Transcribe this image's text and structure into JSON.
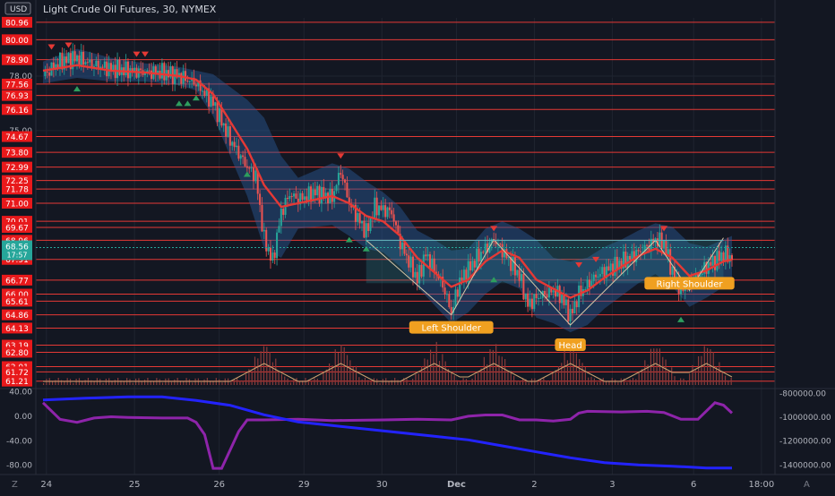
{
  "header": {
    "currency": "USD",
    "symbol_title": "Light Crude Oil Futures, 30, NYMEX"
  },
  "colors": {
    "background": "#131722",
    "hline": "#e53935",
    "level_bg": "#e8191b",
    "current_price_bg": "#26a69a",
    "bull": "#26a69a",
    "bear": "#ef5350",
    "ma": "#e53935",
    "band": "#2a5a9a",
    "pattern_label_bg": "#f0a020",
    "osc_purple": "#8e24aa",
    "osc_blue": "#2323ff",
    "volume": "#8a3a3a",
    "volume_avg": "#c8a070"
  },
  "chart_data": [
    {
      "type": "candlestick",
      "title": "Light Crude Oil Futures, 30, NYMEX",
      "x_ticks": [
        "24",
        "25",
        "26",
        "29",
        "30",
        "Dec",
        "2",
        "3",
        "6",
        "18:00"
      ],
      "y_axis_labels": [
        "80.00",
        "78.00",
        "75.00"
      ],
      "ylim": [
        60.9,
        81.2
      ],
      "grid": true,
      "horizontal_levels": [
        80.96,
        80.0,
        78.9,
        77.56,
        76.93,
        76.16,
        74.67,
        73.8,
        72.99,
        72.25,
        71.78,
        71.0,
        70.01,
        69.67,
        68.96,
        67.91,
        66.77,
        66.0,
        65.61,
        64.86,
        64.13,
        63.19,
        62.8,
        62.01,
        61.72,
        61.21
      ],
      "level_labels": [
        "80.96",
        "80.00",
        "78.90",
        "77.56",
        "76.93",
        "76.16",
        "74.67",
        "73.80",
        "72.99",
        "72.25",
        "71.78",
        "71.00",
        "70.01",
        "69.67",
        "68.96",
        "67.91",
        "66.77",
        "66.00",
        "65.61",
        "64.86",
        "64.13",
        "63.19",
        "62.80",
        "62.01",
        "61.72",
        "61.21"
      ],
      "current_price": {
        "label": "68.56",
        "countdown": "17:57",
        "value": 68.56
      },
      "price_path": [
        [
          0,
          78.0
        ],
        [
          2,
          78.8
        ],
        [
          4,
          79.0
        ],
        [
          6,
          78.6
        ],
        [
          8,
          78.4
        ],
        [
          10,
          78.3
        ],
        [
          12,
          78.2
        ],
        [
          14,
          78.2
        ],
        [
          16,
          78.0
        ],
        [
          18,
          77.6
        ],
        [
          20,
          76.5
        ],
        [
          22,
          74.5
        ],
        [
          24,
          73.0
        ],
        [
          25,
          72.5
        ],
        [
          26,
          69.0
        ],
        [
          27,
          67.8
        ],
        [
          28,
          70.5
        ],
        [
          29,
          71.5
        ],
        [
          30,
          71.2
        ],
        [
          32,
          71.6
        ],
        [
          34,
          71.3
        ],
        [
          35,
          72.8
        ],
        [
          36,
          71.0
        ],
        [
          37,
          70.2
        ],
        [
          38,
          69.4
        ],
        [
          39,
          70.8
        ],
        [
          41,
          70.5
        ],
        [
          42,
          68.8
        ],
        [
          44,
          66.8
        ],
        [
          45,
          68.2
        ],
        [
          47,
          66.5
        ],
        [
          48,
          65.0
        ],
        [
          49,
          66.7
        ],
        [
          51,
          68.0
        ],
        [
          53,
          69.0
        ],
        [
          54,
          68.4
        ],
        [
          56,
          67.0
        ],
        [
          57,
          65.4
        ],
        [
          58,
          65.8
        ],
        [
          60,
          66.2
        ],
        [
          61,
          65.8
        ],
        [
          62,
          64.8
        ],
        [
          63,
          66.0
        ],
        [
          65,
          67.0
        ],
        [
          67,
          67.5
        ],
        [
          69,
          68.0
        ],
        [
          71,
          68.6
        ],
        [
          72,
          69.0
        ],
        [
          73,
          68.8
        ],
        [
          74,
          67.2
        ],
        [
          75,
          66.2
        ],
        [
          76,
          66.6
        ],
        [
          77,
          67.0
        ],
        [
          78,
          67.5
        ],
        [
          80,
          68.2
        ],
        [
          81,
          68.0
        ]
      ],
      "ma_path": [
        [
          0,
          78.3
        ],
        [
          4,
          78.6
        ],
        [
          8,
          78.3
        ],
        [
          12,
          78.2
        ],
        [
          16,
          78.0
        ],
        [
          18,
          77.8
        ],
        [
          20,
          77.0
        ],
        [
          22,
          75.5
        ],
        [
          24,
          74.0
        ],
        [
          26,
          72.0
        ],
        [
          28,
          70.8
        ],
        [
          30,
          71.0
        ],
        [
          34,
          71.4
        ],
        [
          36,
          71.0
        ],
        [
          38,
          70.3
        ],
        [
          40,
          70.0
        ],
        [
          42,
          69.2
        ],
        [
          44,
          68.0
        ],
        [
          46,
          67.2
        ],
        [
          48,
          66.4
        ],
        [
          50,
          66.8
        ],
        [
          52,
          67.8
        ],
        [
          54,
          68.4
        ],
        [
          56,
          68.0
        ],
        [
          58,
          66.8
        ],
        [
          60,
          66.3
        ],
        [
          62,
          65.8
        ],
        [
          64,
          66.2
        ],
        [
          66,
          66.9
        ],
        [
          68,
          67.5
        ],
        [
          70,
          68.1
        ],
        [
          72,
          68.5
        ],
        [
          74,
          68.0
        ],
        [
          76,
          67.0
        ],
        [
          78,
          67.3
        ],
        [
          80,
          67.8
        ],
        [
          81,
          67.9
        ]
      ],
      "band_upper": [
        [
          0,
          78.8
        ],
        [
          4,
          79.5
        ],
        [
          8,
          79.0
        ],
        [
          12,
          78.7
        ],
        [
          16,
          78.5
        ],
        [
          18,
          78.3
        ],
        [
          20,
          78.1
        ],
        [
          22,
          77.4
        ],
        [
          24,
          76.7
        ],
        [
          26,
          75.7
        ],
        [
          28,
          73.6
        ],
        [
          30,
          72.4
        ],
        [
          34,
          73.2
        ],
        [
          36,
          72.9
        ],
        [
          38,
          72.2
        ],
        [
          40,
          71.6
        ],
        [
          42,
          70.8
        ],
        [
          44,
          69.5
        ],
        [
          46,
          69.0
        ],
        [
          48,
          68.4
        ],
        [
          50,
          68.5
        ],
        [
          52,
          69.6
        ],
        [
          54,
          70.0
        ],
        [
          56,
          69.6
        ],
        [
          58,
          69.0
        ],
        [
          60,
          68.0
        ],
        [
          62,
          67.8
        ],
        [
          64,
          68.0
        ],
        [
          66,
          68.6
        ],
        [
          68,
          69.0
        ],
        [
          70,
          69.5
        ],
        [
          72,
          69.9
        ],
        [
          74,
          69.7
        ],
        [
          76,
          68.8
        ],
        [
          78,
          68.6
        ],
        [
          80,
          69.0
        ],
        [
          81,
          69.2
        ]
      ],
      "band_lower": [
        [
          0,
          77.6
        ],
        [
          4,
          77.9
        ],
        [
          8,
          77.7
        ],
        [
          12,
          77.7
        ],
        [
          16,
          77.5
        ],
        [
          18,
          77.2
        ],
        [
          20,
          75.8
        ],
        [
          22,
          73.6
        ],
        [
          24,
          71.4
        ],
        [
          26,
          68.5
        ],
        [
          28,
          68.0
        ],
        [
          30,
          69.6
        ],
        [
          34,
          69.8
        ],
        [
          36,
          69.2
        ],
        [
          38,
          68.5
        ],
        [
          40,
          68.3
        ],
        [
          42,
          67.5
        ],
        [
          44,
          66.4
        ],
        [
          46,
          65.4
        ],
        [
          48,
          64.4
        ],
        [
          50,
          65.0
        ],
        [
          52,
          66.0
        ],
        [
          54,
          66.7
        ],
        [
          56,
          66.3
        ],
        [
          58,
          64.7
        ],
        [
          60,
          64.4
        ],
        [
          62,
          63.9
        ],
        [
          64,
          64.3
        ],
        [
          66,
          65.2
        ],
        [
          68,
          65.9
        ],
        [
          70,
          66.6
        ],
        [
          72,
          67.1
        ],
        [
          74,
          66.4
        ],
        [
          76,
          65.3
        ],
        [
          78,
          65.8
        ],
        [
          80,
          66.4
        ],
        [
          81,
          66.6
        ]
      ],
      "pattern": {
        "neckline": 68.96,
        "labels": [
          "Left Shoulder",
          "Head",
          "Right Shoulder"
        ],
        "points": [
          [
            38,
            68.96
          ],
          [
            48,
            64.86
          ],
          [
            53,
            69.0
          ],
          [
            62,
            64.3
          ],
          [
            72,
            68.96
          ],
          [
            76,
            66.2
          ],
          [
            80,
            69.1
          ]
        ]
      },
      "sell_signals": [
        [
          1,
          79.6
        ],
        [
          3,
          79.7
        ],
        [
          11,
          79.2
        ],
        [
          12,
          79.2
        ],
        [
          35,
          73.6
        ],
        [
          53,
          69.6
        ],
        [
          63,
          67.6
        ],
        [
          65,
          67.9
        ],
        [
          73,
          69.6
        ]
      ],
      "buy_signals": [
        [
          4,
          77.3
        ],
        [
          16,
          76.5
        ],
        [
          17,
          76.5
        ],
        [
          18,
          76.8
        ],
        [
          24,
          72.6
        ],
        [
          36,
          69.0
        ],
        [
          38,
          68.5
        ],
        [
          53,
          66.8
        ],
        [
          75,
          64.6
        ]
      ]
    },
    {
      "type": "bar",
      "title": "",
      "note": "volume sub-pane, no printed values",
      "spike_index": [
        26,
        35,
        46,
        53,
        62,
        72,
        78
      ]
    },
    {
      "type": "line",
      "title": "",
      "y_axis_left": [
        "40.00",
        "0.00",
        "-40.00",
        "-80.00"
      ],
      "y_axis_right": [
        "-800000.00",
        "-1000000.00",
        "-1200000.00",
        "-1400000.00"
      ],
      "left_range": [
        -95,
        45
      ],
      "right_range": [
        -1480000,
        -760000
      ],
      "series": [
        {
          "color": "#8e24aa",
          "axis": "left",
          "values": [
            [
              0,
              22
            ],
            [
              2,
              -5
            ],
            [
              4,
              -10
            ],
            [
              6,
              -3
            ],
            [
              8,
              -1
            ],
            [
              10,
              -2
            ],
            [
              14,
              -3
            ],
            [
              17,
              -3
            ],
            [
              18,
              -10
            ],
            [
              19,
              -30
            ],
            [
              20,
              -85
            ],
            [
              21,
              -85
            ],
            [
              22,
              -55
            ],
            [
              23,
              -25
            ],
            [
              24,
              -6
            ],
            [
              26,
              -6
            ],
            [
              30,
              -5
            ],
            [
              34,
              -7
            ],
            [
              40,
              -6
            ],
            [
              44,
              -5
            ],
            [
              48,
              -6
            ],
            [
              50,
              0
            ],
            [
              52,
              2
            ],
            [
              54,
              2
            ],
            [
              56,
              -6
            ],
            [
              58,
              -6
            ],
            [
              60,
              -8
            ],
            [
              62,
              -5
            ],
            [
              63,
              5
            ],
            [
              64,
              8
            ],
            [
              68,
              7
            ],
            [
              71,
              8
            ],
            [
              73,
              6
            ],
            [
              75,
              -5
            ],
            [
              77,
              -5
            ],
            [
              79,
              22
            ],
            [
              80,
              18
            ],
            [
              81,
              5
            ]
          ]
        },
        {
          "color": "#2323ff",
          "axis": "right",
          "values": [
            [
              0,
              -855000
            ],
            [
              5,
              -840000
            ],
            [
              10,
              -830000
            ],
            [
              14,
              -830000
            ],
            [
              18,
              -860000
            ],
            [
              22,
              -900000
            ],
            [
              26,
              -980000
            ],
            [
              30,
              -1040000
            ],
            [
              34,
              -1070000
            ],
            [
              38,
              -1100000
            ],
            [
              42,
              -1130000
            ],
            [
              46,
              -1160000
            ],
            [
              50,
              -1190000
            ],
            [
              54,
              -1240000
            ],
            [
              58,
              -1290000
            ],
            [
              62,
              -1340000
            ],
            [
              66,
              -1380000
            ],
            [
              70,
              -1400000
            ],
            [
              74,
              -1410000
            ],
            [
              78,
              -1425000
            ],
            [
              81,
              -1425000
            ]
          ]
        }
      ]
    }
  ]
}
